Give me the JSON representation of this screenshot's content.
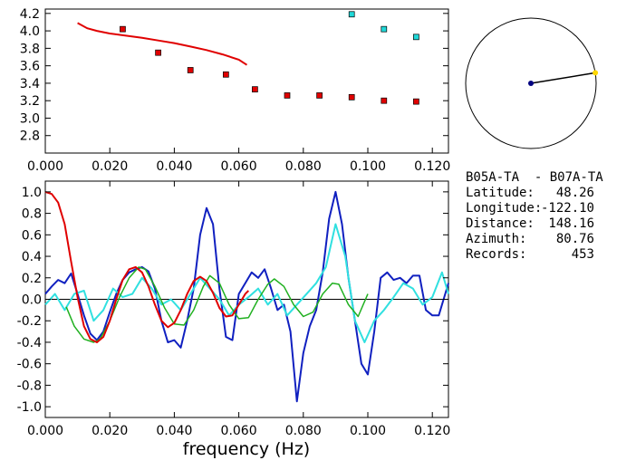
{
  "info": {
    "title": "B05A-TA  - B07A-TA",
    "rows": [
      {
        "label": "Latitude:",
        "value": "48.26"
      },
      {
        "label": "Longitude:",
        "value": "-122.10"
      },
      {
        "label": "Distance:",
        "value": "148.16"
      },
      {
        "label": "Azimuth:",
        "value": "80.76"
      },
      {
        "label": "Records:",
        "value": "453"
      }
    ]
  },
  "compass": {
    "azimuth_deg": 80.76,
    "line_color": "#000000",
    "center_color": "#000080",
    "end_color": "#ffd700"
  },
  "chart_data": [
    {
      "type": "scatter",
      "title": "",
      "xlabel": "",
      "ylabel": "",
      "xlim": [
        0.0,
        0.125
      ],
      "ylim": [
        2.6,
        4.25
      ],
      "xticks": [
        "0.000",
        "0.020",
        "0.040",
        "0.060",
        "0.080",
        "0.100",
        "0.120"
      ],
      "yticks": [
        "2.8",
        "3.0",
        "3.2",
        "3.4",
        "3.6",
        "3.8",
        "4.0",
        "4.2"
      ],
      "curve": {
        "color": "#e00000",
        "x": [
          0.01,
          0.013,
          0.016,
          0.02,
          0.025,
          0.03,
          0.035,
          0.04,
          0.045,
          0.05,
          0.055,
          0.06,
          0.0625
        ],
        "y": [
          4.09,
          4.03,
          4.0,
          3.97,
          3.945,
          3.92,
          3.89,
          3.86,
          3.82,
          3.78,
          3.73,
          3.67,
          3.61
        ]
      },
      "series": [
        {
          "color": "#e00000",
          "x": [
            0.024,
            0.035,
            0.045,
            0.056,
            0.065,
            0.075,
            0.085,
            0.095,
            0.105,
            0.115
          ],
          "y": [
            4.02,
            3.75,
            3.55,
            3.5,
            3.33,
            3.26,
            3.26,
            3.24,
            3.2,
            3.19
          ]
        },
        {
          "color": "#20d8d8",
          "x": [
            0.095,
            0.105,
            0.115
          ],
          "y": [
            4.19,
            4.02,
            3.93
          ]
        }
      ]
    },
    {
      "type": "line",
      "title": "",
      "xlabel": "frequency (Hz)",
      "ylabel": "",
      "xlim": [
        0.0,
        0.125
      ],
      "ylim": [
        -1.1,
        1.1
      ],
      "xticks": [
        "0.000",
        "0.020",
        "0.040",
        "0.060",
        "0.080",
        "0.100",
        "0.120"
      ],
      "yticks": [
        "1.0",
        "0.8",
        "0.6",
        "0.4",
        "0.2",
        "0.0",
        "-0.2",
        "-0.4",
        "-0.6",
        "-0.8",
        "-1.0"
      ],
      "series": [
        {
          "color": "#1020c0",
          "x": [
            0,
            0.002,
            0.004,
            0.006,
            0.008,
            0.01,
            0.012,
            0.014,
            0.016,
            0.018,
            0.02,
            0.022,
            0.024,
            0.026,
            0.028,
            0.03,
            0.032,
            0.034,
            0.036,
            0.038,
            0.04,
            0.042,
            0.044,
            0.046,
            0.048,
            0.05,
            0.052,
            0.054,
            0.056,
            0.058,
            0.06,
            0.062,
            0.064,
            0.066,
            0.068,
            0.07,
            0.072,
            0.074,
            0.076,
            0.078,
            0.08,
            0.082,
            0.084,
            0.086,
            0.088,
            0.09,
            0.092,
            0.094,
            0.096,
            0.098,
            0.1,
            0.102,
            0.104,
            0.106,
            0.108,
            0.11,
            0.112,
            0.114,
            0.116,
            0.118,
            0.12,
            0.122,
            0.124,
            0.125
          ],
          "y": [
            0.05,
            0.12,
            0.18,
            0.15,
            0.24,
            0.05,
            -0.15,
            -0.32,
            -0.38,
            -0.3,
            -0.12,
            0.05,
            0.18,
            0.25,
            0.28,
            0.3,
            0.26,
            0.1,
            -0.2,
            -0.4,
            -0.38,
            -0.45,
            -0.2,
            0.1,
            0.6,
            0.85,
            0.7,
            0.1,
            -0.35,
            -0.38,
            0.05,
            0.15,
            0.25,
            0.2,
            0.28,
            0.1,
            -0.1,
            -0.05,
            -0.3,
            -0.95,
            -0.5,
            -0.25,
            -0.1,
            0.25,
            0.75,
            1.0,
            0.7,
            0.2,
            -0.2,
            -0.6,
            -0.7,
            -0.3,
            0.2,
            0.25,
            0.18,
            0.2,
            0.15,
            0.22,
            0.22,
            -0.1,
            -0.15,
            -0.15,
            0.05,
            0.15
          ]
        },
        {
          "color": "#30e0e0",
          "x": [
            0,
            0.003,
            0.006,
            0.009,
            0.012,
            0.015,
            0.018,
            0.021,
            0.024,
            0.027,
            0.03,
            0.033,
            0.036,
            0.039,
            0.042,
            0.045,
            0.048,
            0.051,
            0.054,
            0.057,
            0.06,
            0.063,
            0.066,
            0.069,
            0.072,
            0.075,
            0.078,
            0.081,
            0.084,
            0.087,
            0.09,
            0.093,
            0.096,
            0.099,
            0.102,
            0.105,
            0.108,
            0.111,
            0.114,
            0.117,
            0.12,
            0.123,
            0.125
          ],
          "y": [
            -0.05,
            0.05,
            -0.1,
            0.05,
            0.08,
            -0.2,
            -0.1,
            0.1,
            0.02,
            0.05,
            0.2,
            0.1,
            -0.05,
            0.0,
            -0.1,
            0.05,
            0.2,
            0.1,
            0.0,
            -0.15,
            -0.05,
            0.02,
            0.1,
            -0.05,
            0.05,
            -0.15,
            -0.05,
            0.05,
            0.15,
            0.3,
            0.7,
            0.4,
            -0.2,
            -0.4,
            -0.2,
            -0.1,
            0.02,
            0.15,
            0.1,
            -0.05,
            0.02,
            0.25,
            0.05
          ]
        },
        {
          "color": "#20b020",
          "x": [
            0.0065,
            0.009,
            0.012,
            0.015,
            0.017,
            0.02,
            0.023,
            0.026,
            0.029,
            0.031,
            0.034,
            0.037,
            0.04,
            0.043,
            0.046,
            0.049,
            0.051,
            0.054,
            0.057,
            0.06,
            0.063,
            0.066,
            0.069,
            0.071,
            0.074,
            0.077,
            0.08,
            0.083,
            0.086,
            0.089,
            0.091,
            0.094,
            0.097,
            0.1
          ],
          "y": [
            -0.07,
            -0.25,
            -0.37,
            -0.4,
            -0.37,
            -0.2,
            0.02,
            0.2,
            0.3,
            0.28,
            0.12,
            -0.08,
            -0.23,
            -0.24,
            -0.1,
            0.12,
            0.22,
            0.15,
            -0.05,
            -0.18,
            -0.17,
            0.0,
            0.14,
            0.19,
            0.12,
            -0.05,
            -0.16,
            -0.12,
            0.05,
            0.15,
            0.14,
            -0.05,
            -0.16,
            0.05
          ]
        },
        {
          "color": "#e00000",
          "x": [
            0,
            0.002,
            0.004,
            0.006,
            0.008,
            0.01,
            0.012,
            0.014,
            0.016,
            0.018,
            0.02,
            0.022,
            0.024,
            0.026,
            0.028,
            0.03,
            0.032,
            0.034,
            0.036,
            0.038,
            0.04,
            0.042,
            0.044,
            0.046,
            0.048,
            0.05,
            0.052,
            0.054,
            0.056,
            0.058,
            0.06,
            0.062,
            0.063
          ],
          "y": [
            1.0,
            0.98,
            0.9,
            0.7,
            0.35,
            0.02,
            -0.25,
            -0.37,
            -0.4,
            -0.35,
            -0.2,
            0.0,
            0.18,
            0.28,
            0.3,
            0.25,
            0.12,
            -0.05,
            -0.2,
            -0.26,
            -0.22,
            -0.1,
            0.05,
            0.17,
            0.21,
            0.17,
            0.06,
            -0.08,
            -0.16,
            -0.15,
            -0.05,
            0.05,
            0.08
          ]
        }
      ]
    }
  ]
}
